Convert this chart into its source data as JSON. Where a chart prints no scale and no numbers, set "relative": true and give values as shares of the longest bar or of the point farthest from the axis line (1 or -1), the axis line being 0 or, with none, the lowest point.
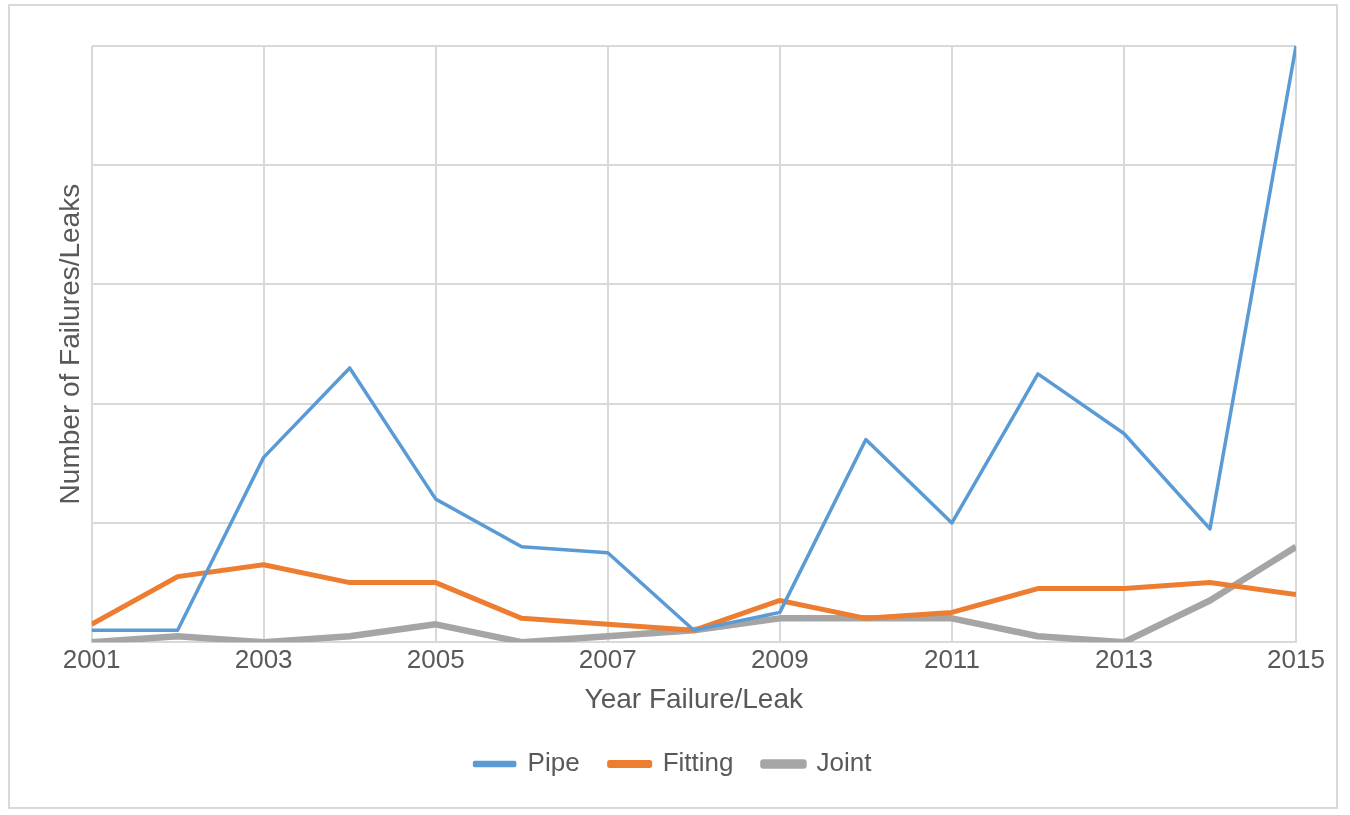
{
  "chart_data": {
    "type": "line",
    "xlabel": "Year Failure/Leak",
    "ylabel": "Number of Failures/Leaks",
    "relative": true,
    "grid": true,
    "legend": "bottom",
    "marker": "none",
    "line_style": "solid",
    "x": [
      2001,
      2002,
      2003,
      2004,
      2005,
      2006,
      2007,
      2008,
      2009,
      2010,
      2011,
      2012,
      2013,
      2014,
      2015
    ],
    "xlim": [
      2001,
      2015
    ],
    "xticks": [
      2001,
      2003,
      2005,
      2007,
      2009,
      2011,
      2013,
      2015
    ],
    "series": [
      {
        "name": "Pipe",
        "color": "#5b9bd5",
        "values": [
          0.02,
          0.02,
          0.31,
          0.46,
          0.24,
          0.16,
          0.15,
          0.02,
          0.05,
          0.34,
          0.2,
          0.45,
          0.35,
          0.19,
          1
        ]
      },
      {
        "name": "Fitting",
        "color": "#ed7d31",
        "values": [
          0.03,
          0.11,
          0.13,
          0.1,
          0.1,
          0.04,
          0.03,
          0.02,
          0.07,
          0.04,
          0.05,
          0.09,
          0.09,
          0.1,
          0.08
        ]
      },
      {
        "name": "Joint",
        "color": "#a5a5a5",
        "values": [
          0,
          0.01,
          0,
          0.01,
          0.03,
          0,
          0.01,
          0.02,
          0.04,
          0.04,
          0.04,
          0.01,
          0,
          0.07,
          0.16
        ]
      }
    ]
  }
}
